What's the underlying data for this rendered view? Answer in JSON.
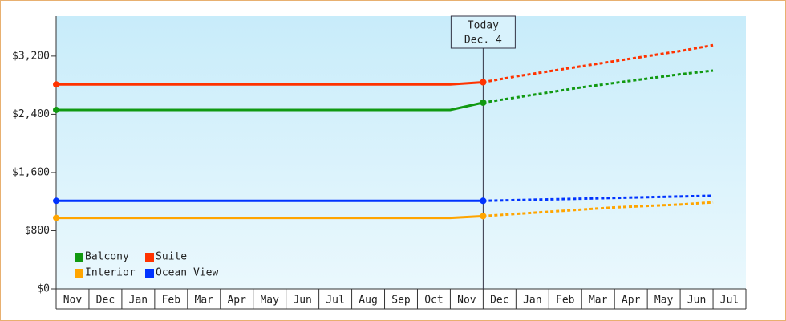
{
  "chart_data": {
    "type": "line",
    "annotation": [
      "Today",
      "Dec. 4"
    ],
    "categories": [
      "Nov",
      "Dec",
      "Jan",
      "Feb",
      "Mar",
      "Apr",
      "May",
      "Jun",
      "Jul",
      "Aug",
      "Sep",
      "Oct",
      "Nov",
      "Dec",
      "Jan",
      "Feb",
      "Mar",
      "Apr",
      "May",
      "Jun",
      "Jul"
    ],
    "series": [
      {
        "name": "Balcony",
        "color": "#119911",
        "values": [
          2460,
          2460,
          2460,
          2460,
          2460,
          2460,
          2460,
          2460,
          2460,
          2460,
          2460,
          2460,
          2460,
          2560,
          null,
          null,
          null,
          null,
          null,
          null,
          null
        ],
        "forecast_values": [
          null,
          null,
          null,
          null,
          null,
          null,
          null,
          null,
          null,
          null,
          null,
          null,
          null,
          2560,
          2630,
          2700,
          2770,
          2830,
          2890,
          2950,
          3000
        ]
      },
      {
        "name": "Suite",
        "color": "#ff3300",
        "values": [
          2810,
          2810,
          2810,
          2810,
          2810,
          2810,
          2810,
          2810,
          2810,
          2810,
          2810,
          2810,
          2810,
          2840,
          null,
          null,
          null,
          null,
          null,
          null,
          null
        ],
        "forecast_values": [
          null,
          null,
          null,
          null,
          null,
          null,
          null,
          null,
          null,
          null,
          null,
          null,
          null,
          2840,
          2920,
          2990,
          3060,
          3130,
          3200,
          3270,
          3350
        ]
      },
      {
        "name": "Interior",
        "color": "#ffa500",
        "values": [
          975,
          975,
          975,
          975,
          975,
          975,
          975,
          975,
          975,
          975,
          975,
          975,
          975,
          1000,
          null,
          null,
          null,
          null,
          null,
          null,
          null
        ],
        "forecast_values": [
          null,
          null,
          null,
          null,
          null,
          null,
          null,
          null,
          null,
          null,
          null,
          null,
          null,
          1000,
          1030,
          1060,
          1090,
          1120,
          1140,
          1160,
          1190
        ]
      },
      {
        "name": "Ocean View",
        "color": "#0033ff",
        "values": [
          1210,
          1210,
          1210,
          1210,
          1210,
          1210,
          1210,
          1210,
          1210,
          1210,
          1210,
          1210,
          1210,
          1210,
          null,
          null,
          null,
          null,
          null,
          null,
          null
        ],
        "forecast_values": [
          null,
          null,
          null,
          null,
          null,
          null,
          null,
          null,
          null,
          null,
          null,
          null,
          null,
          1210,
          1220,
          1230,
          1240,
          1250,
          1260,
          1270,
          1280
        ]
      }
    ],
    "ylim": [
      0,
      3750
    ],
    "yticks": [
      {
        "value": 0,
        "label": "$0"
      },
      {
        "value": 800,
        "label": "$800"
      },
      {
        "value": 1600,
        "label": "$1,600"
      },
      {
        "value": 2400,
        "label": "$2,400"
      },
      {
        "value": 3200,
        "label": "$3,200"
      }
    ]
  }
}
